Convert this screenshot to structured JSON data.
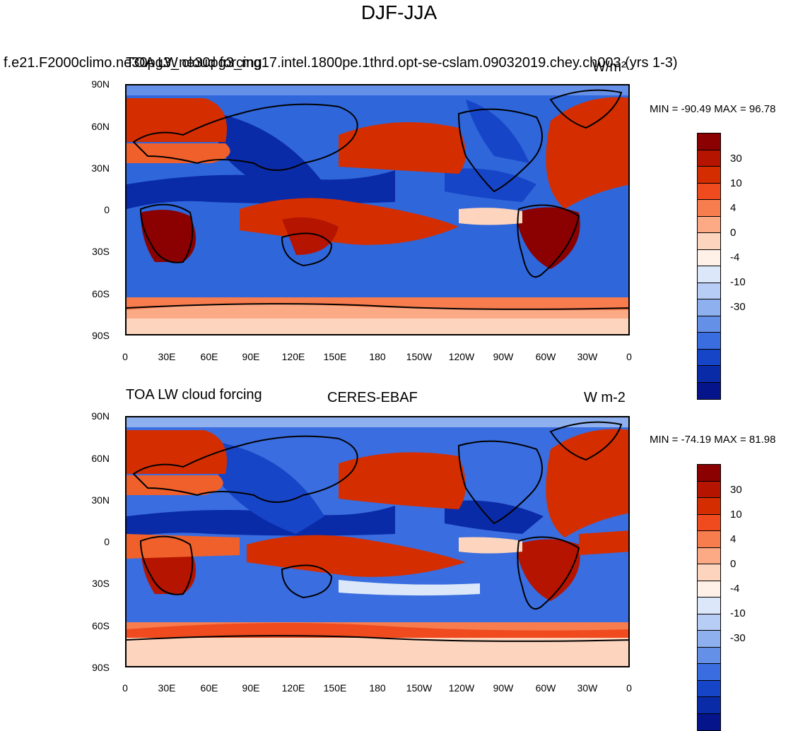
{
  "main_title": "DJF-JJA",
  "panels": [
    {
      "left_label": "f.e21.F2000climo.ne30pg3_ne30pg3_mg17.intel.1800pe.1thrd.opt-se-cslam.09032019.chey.ch003 (yrs 1-3)",
      "overlap_label": "TOA LW cloud forcing",
      "center_label": "",
      "units": "W/m²",
      "min_max": "MIN = -90.49 MAX =  96.78"
    },
    {
      "left_label": "TOA LW cloud forcing",
      "overlap_label": "",
      "center_label": "CERES-EBAF",
      "units": "W m-2",
      "min_max": "MIN = -74.19 MAX =  81.98"
    }
  ],
  "lat_ticks": [
    "90N",
    "60N",
    "30N",
    "0",
    "30S",
    "60S",
    "90S"
  ],
  "lon_ticks": [
    "0",
    "30E",
    "60E",
    "90E",
    "120E",
    "150E",
    "180",
    "150W",
    "120W",
    "90W",
    "60W",
    "30W",
    "0"
  ],
  "colorbar": {
    "colors": [
      "#8b0000",
      "#b51400",
      "#d42e00",
      "#ef4b1f",
      "#f77c4e",
      "#fbaa85",
      "#fdd4bd",
      "#fff1e8",
      "#dce8fa",
      "#b7cdf5",
      "#8fb0ef",
      "#6590e8",
      "#3a6ddf",
      "#1745c8",
      "#0a2ba8",
      "#05148a"
    ],
    "labels": [
      "30",
      "10",
      "4",
      "0",
      "-4",
      "-10",
      "-30"
    ]
  },
  "palette": {
    "ocean_blue": "#2f66da",
    "deep_blue": "#0c2fb0",
    "light_blue": "#8fb0ef",
    "pale": "#fde2d4",
    "orange": "#f0602a",
    "red": "#d4300a",
    "dark_red": "#8b0000"
  }
}
